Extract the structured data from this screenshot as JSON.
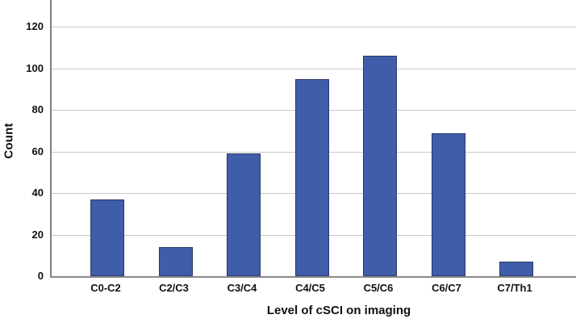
{
  "chart_data": {
    "type": "bar",
    "title": "",
    "xlabel": "Level of cSCI on imaging",
    "ylabel": "Count",
    "categories": [
      "C0-C2",
      "C2/C3",
      "C3/C4",
      "C4/C5",
      "C5/C6",
      "C6/C7",
      "C7/Th1"
    ],
    "values": [
      37,
      14,
      59,
      95,
      106,
      69,
      7
    ],
    "ylim": [
      0,
      133
    ],
    "yticks": [
      0,
      20,
      40,
      60,
      80,
      100,
      120
    ],
    "grid": true,
    "legend": "none",
    "bar_color": "#3f5da9",
    "bar_border_color": "#2b3a66",
    "gridline_color": "#c9c9c9",
    "axis_color": "#7f7f7f",
    "text_color": "#111111"
  }
}
